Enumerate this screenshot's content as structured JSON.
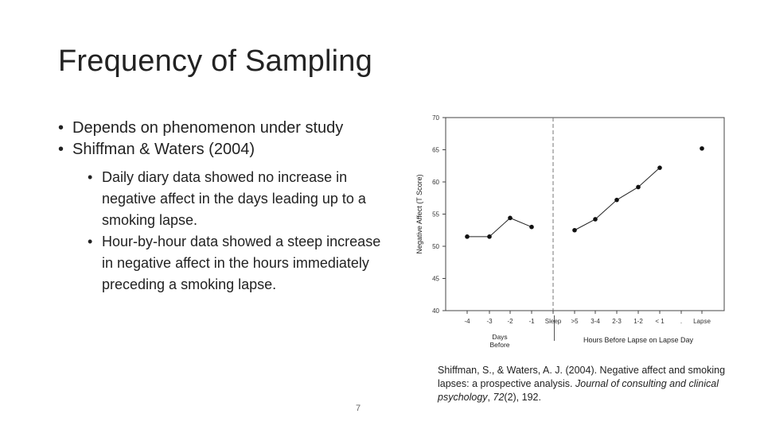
{
  "slide": {
    "title": "Frequency of Sampling",
    "bullets": [
      "Depends on phenomenon under study",
      "Shiffman & Waters (2004)"
    ],
    "sub_bullets": [
      "Daily diary data showed no increase in negative affect in the days leading up to a smoking lapse.",
      "Hour-by-hour data showed a steep increase in negative affect in the hours immediately preceding a smoking lapse."
    ],
    "page_number": "7",
    "citation": {
      "part1": "Shiffman, S., & Waters, A. J. (2004). Negative affect and smoking lapses: a prospective analysis. ",
      "journal": "Journal of consulting and clinical psychology",
      "sep": ", ",
      "volume": "72",
      "issue_pages": "(2), 192."
    }
  },
  "chart_data": {
    "type": "scatter",
    "ylabel": "Negative Affect (T Score)",
    "ylim": [
      40,
      70
    ],
    "yticks": [
      40,
      45,
      50,
      55,
      60,
      65,
      70
    ],
    "categories": [
      "-4",
      "-3",
      "-2",
      "-1",
      "Sleep",
      ">5",
      "3-4",
      "2-3",
      "1-2",
      "< 1",
      ".",
      "Lapse"
    ],
    "xlabel_days": "Days\nBefore",
    "xlabel_hours": "Hours Before Lapse on Lapse Day",
    "separator_after": "Sleep",
    "series": [
      {
        "name": "Days before",
        "points": [
          [
            "-4",
            51.5
          ],
          [
            "-3",
            51.5
          ],
          [
            "-2",
            54.4
          ],
          [
            "-1",
            53.0
          ]
        ]
      },
      {
        "name": "Hours before",
        "points": [
          [
            ">5",
            52.5
          ],
          [
            "3-4",
            54.2
          ],
          [
            "2-3",
            57.2
          ],
          [
            "1-2",
            59.2
          ],
          [
            "< 1",
            62.2
          ]
        ]
      },
      {
        "name": "Lapse",
        "points": [
          [
            "Lapse",
            65.2
          ]
        ]
      }
    ]
  }
}
